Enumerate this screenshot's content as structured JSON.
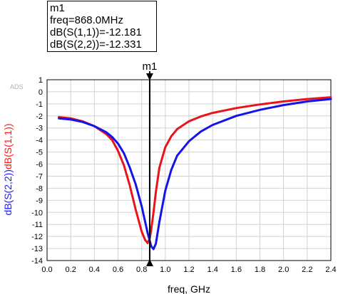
{
  "marker_box": {
    "name": "m1",
    "line1": "freq=868.0MHz",
    "line2": "dB(S(1,1))=-12.181",
    "line3": "dB(S(2,2))=-12.331"
  },
  "watermark": "ADS",
  "chart_data": {
    "type": "line",
    "xlabel": "freq, GHz",
    "ylabel_parts": [
      {
        "text": "dB(S(2,2))",
        "color": "#1a1aff"
      },
      {
        "text": "dB(S(1,1))",
        "color": "#ff1a1a"
      }
    ],
    "xlim": [
      0.0,
      2.4
    ],
    "ylim": [
      -14,
      1
    ],
    "xticks": [
      0.0,
      0.2,
      0.4,
      0.6,
      0.8,
      1.0,
      1.2,
      1.4,
      1.6,
      1.8,
      2.0,
      2.2,
      2.4
    ],
    "xtick_labels": [
      "0.0",
      "0.2",
      "0.4",
      "0.6",
      "0.8",
      "1.0",
      "1.2",
      "1.4",
      "1.6",
      "1.8",
      "2.0",
      "2.2",
      "2.4"
    ],
    "yticks": [
      1,
      0,
      -1,
      -2,
      -3,
      -4,
      -5,
      -6,
      -7,
      -8,
      -9,
      -10,
      -11,
      -12,
      -13,
      -14
    ],
    "ytick_labels": [
      "1",
      "0",
      "-1",
      "-2",
      "-3",
      "-4",
      "-5",
      "-6",
      "-7",
      "-8",
      "-9",
      "-10",
      "-11",
      "-12",
      "-13",
      "-14"
    ],
    "grid": true,
    "marker": {
      "label": "m1",
      "x": 0.868
    },
    "series": [
      {
        "name": "dB(S(1,1))",
        "color": "#e8141a",
        "x": [
          0.1,
          0.2,
          0.3,
          0.4,
          0.5,
          0.55,
          0.6,
          0.65,
          0.7,
          0.75,
          0.8,
          0.83,
          0.85,
          0.868,
          0.88,
          0.9,
          0.92,
          0.95,
          1.0,
          1.05,
          1.1,
          1.2,
          1.3,
          1.4,
          1.6,
          1.8,
          2.0,
          2.2,
          2.4
        ],
        "y": [
          -2.1,
          -2.2,
          -2.45,
          -2.85,
          -3.5,
          -4.0,
          -4.9,
          -6.1,
          -7.8,
          -9.8,
          -11.6,
          -12.3,
          -12.55,
          -12.181,
          -11.5,
          -10.0,
          -8.3,
          -6.3,
          -4.6,
          -3.7,
          -3.1,
          -2.45,
          -2.05,
          -1.75,
          -1.35,
          -1.05,
          -0.8,
          -0.6,
          -0.45
        ]
      },
      {
        "name": "dB(S(2,2))",
        "color": "#1414e8",
        "x": [
          0.1,
          0.2,
          0.3,
          0.4,
          0.5,
          0.55,
          0.6,
          0.65,
          0.7,
          0.75,
          0.8,
          0.85,
          0.868,
          0.88,
          0.9,
          0.92,
          0.95,
          1.0,
          1.05,
          1.1,
          1.2,
          1.3,
          1.4,
          1.6,
          1.8,
          2.0,
          2.2,
          2.4
        ],
        "y": [
          -2.2,
          -2.3,
          -2.5,
          -2.85,
          -3.35,
          -3.75,
          -4.3,
          -5.1,
          -6.3,
          -7.7,
          -9.5,
          -11.7,
          -12.331,
          -12.8,
          -13.05,
          -12.6,
          -10.8,
          -8.2,
          -6.5,
          -5.3,
          -4.1,
          -3.3,
          -2.75,
          -2.0,
          -1.5,
          -1.1,
          -0.8,
          -0.6
        ]
      }
    ]
  }
}
